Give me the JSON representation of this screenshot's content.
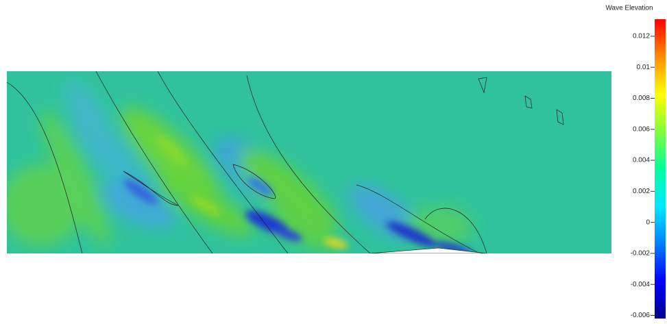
{
  "chart_data": {
    "type": "contour",
    "title": "Wave Elevation",
    "clim": [
      -0.0062,
      0.0131
    ],
    "cticks": [
      0.012,
      0.01,
      0.008,
      0.006,
      0.004,
      0.002,
      0,
      -0.002,
      -0.004,
      -0.006
    ],
    "colormap": [
      "#00008f",
      "#0000ff",
      "#0080ff",
      "#00e8ff",
      "#00ff9c",
      "#7fff3a",
      "#ffff00",
      "#ff8c00",
      "#ff0000"
    ]
  }
}
